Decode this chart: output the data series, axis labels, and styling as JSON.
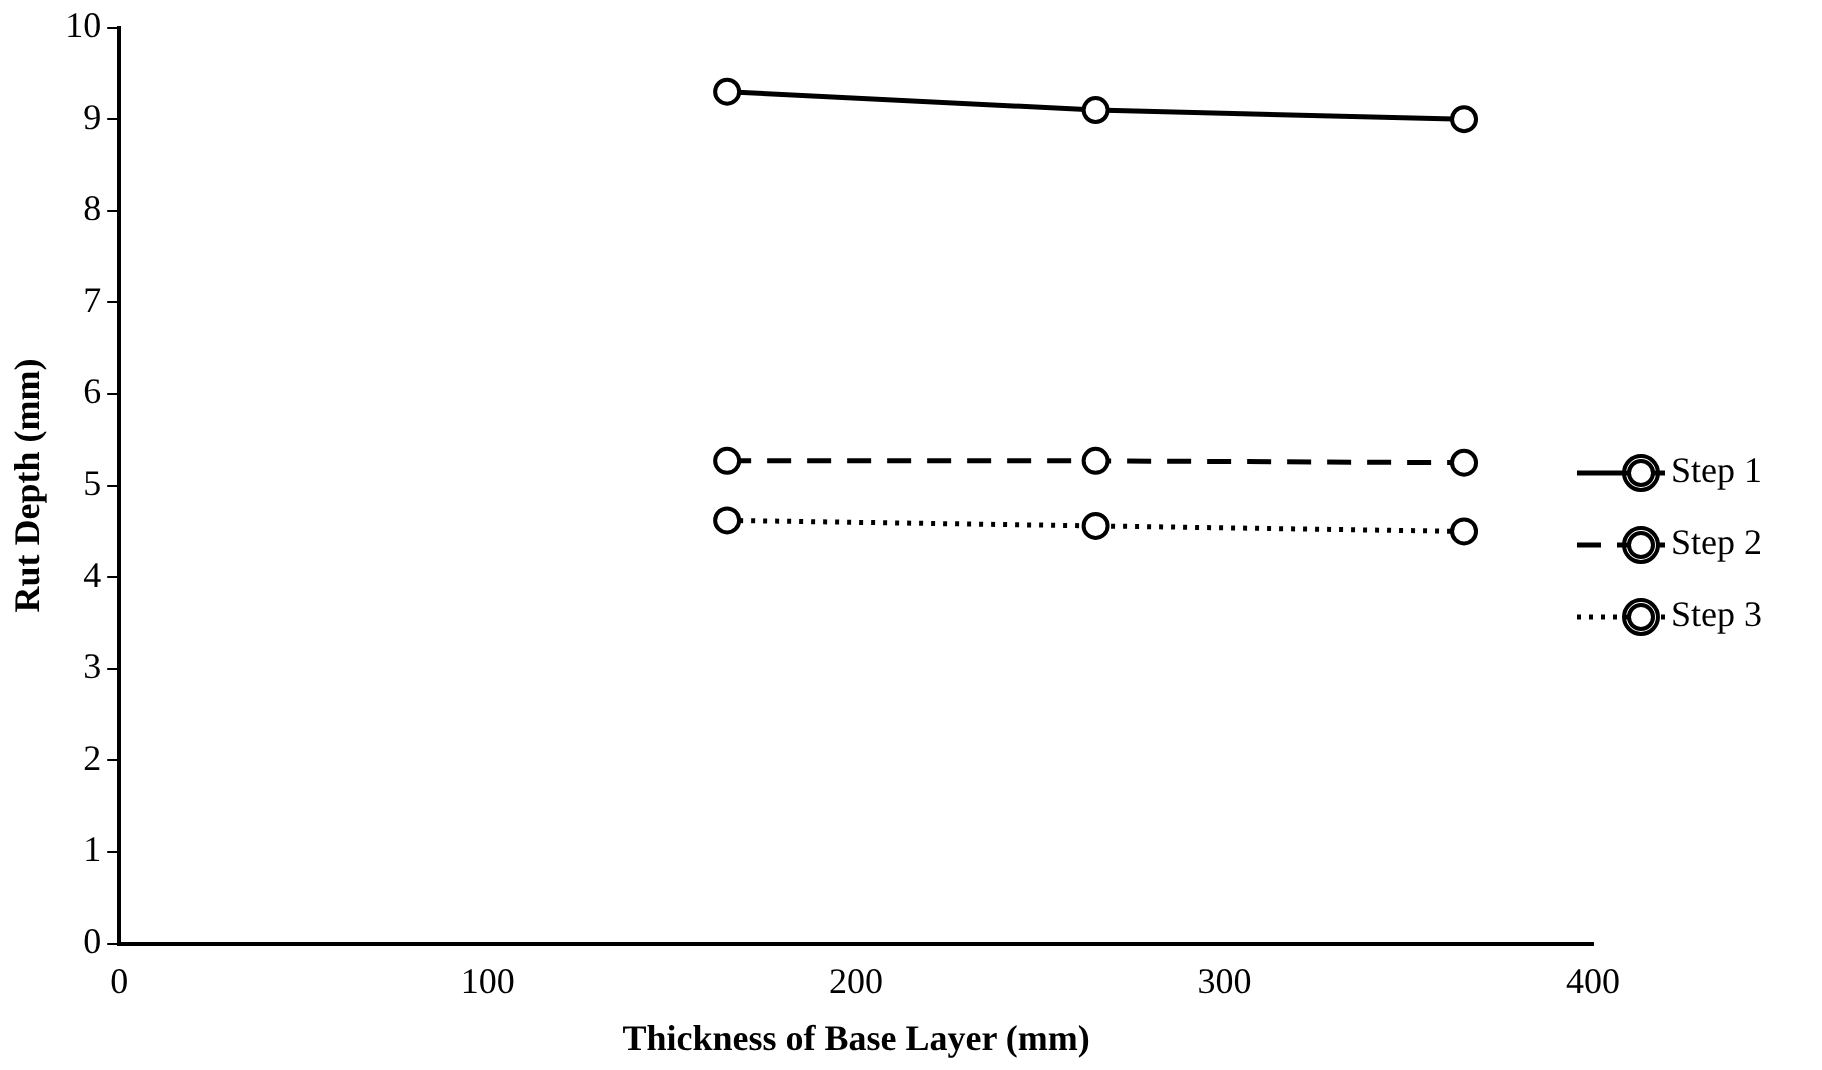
{
  "chart_data": {
    "type": "line",
    "xlabel": "Thickness of Base Layer (mm)",
    "ylabel": "Rut Depth (mm)",
    "x": [
      165,
      265,
      365
    ],
    "series": [
      {
        "name": "Step 1",
        "color": "#000000",
        "values": [
          9.3,
          9.1,
          9.0
        ],
        "line_style": "solid"
      },
      {
        "name": "Step 2",
        "color": "#000000",
        "values": [
          5.27,
          5.27,
          5.25
        ],
        "line_style": "dashed"
      },
      {
        "name": "Step 3",
        "color": "#000000",
        "values": [
          4.62,
          4.56,
          4.5
        ],
        "line_style": "dotted"
      }
    ],
    "xlim": [
      0,
      400
    ],
    "xticks": [
      0,
      100,
      200,
      300,
      400
    ],
    "ylim": [
      0,
      10
    ],
    "yticks": [
      0,
      1,
      2,
      3,
      4,
      5,
      6,
      7,
      8,
      9,
      10
    ],
    "grid": false,
    "legend": "right",
    "marker": "circle"
  }
}
